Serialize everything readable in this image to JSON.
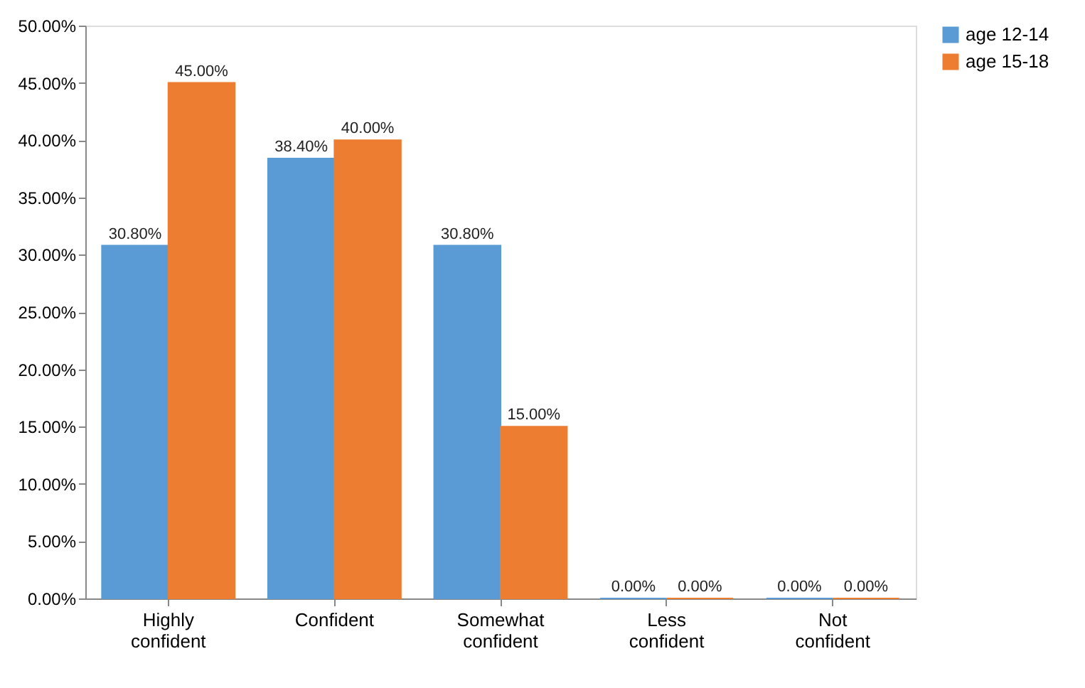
{
  "chart_data": {
    "type": "bar",
    "categories": [
      "Highly confident",
      "Confident",
      "Somewhat confident",
      "Less confident",
      "Not confident"
    ],
    "series": [
      {
        "name": "age 12-14",
        "color": "#5b9bd5",
        "values": [
          30.8,
          38.4,
          30.8,
          0,
          0
        ],
        "value_labels": [
          "30.80%",
          "38.40%",
          "30.80%",
          "0.00%",
          "0.00%"
        ]
      },
      {
        "name": "age 15-18",
        "color": "#ed7d31",
        "values": [
          45,
          40,
          15,
          0,
          0
        ],
        "value_labels": [
          "45.00%",
          "40.00%",
          "15.00%",
          "0.00%",
          "0.00%"
        ]
      }
    ],
    "ylim": [
      0,
      50
    ],
    "yticks": [
      {
        "value": 0,
        "label": "0.00%"
      },
      {
        "value": 5,
        "label": "5.00%"
      },
      {
        "value": 10,
        "label": "10.00%"
      },
      {
        "value": 15,
        "label": "15.00%"
      },
      {
        "value": 20,
        "label": "20.00%"
      },
      {
        "value": 25,
        "label": "25.00%"
      },
      {
        "value": 30,
        "label": "30.00%"
      },
      {
        "value": 35,
        "label": "35.00%"
      },
      {
        "value": 40,
        "label": "40.00%"
      },
      {
        "value": 45,
        "label": "45.00%"
      },
      {
        "value": 50,
        "label": "50.00%"
      }
    ],
    "grid": false,
    "legend": "right"
  }
}
